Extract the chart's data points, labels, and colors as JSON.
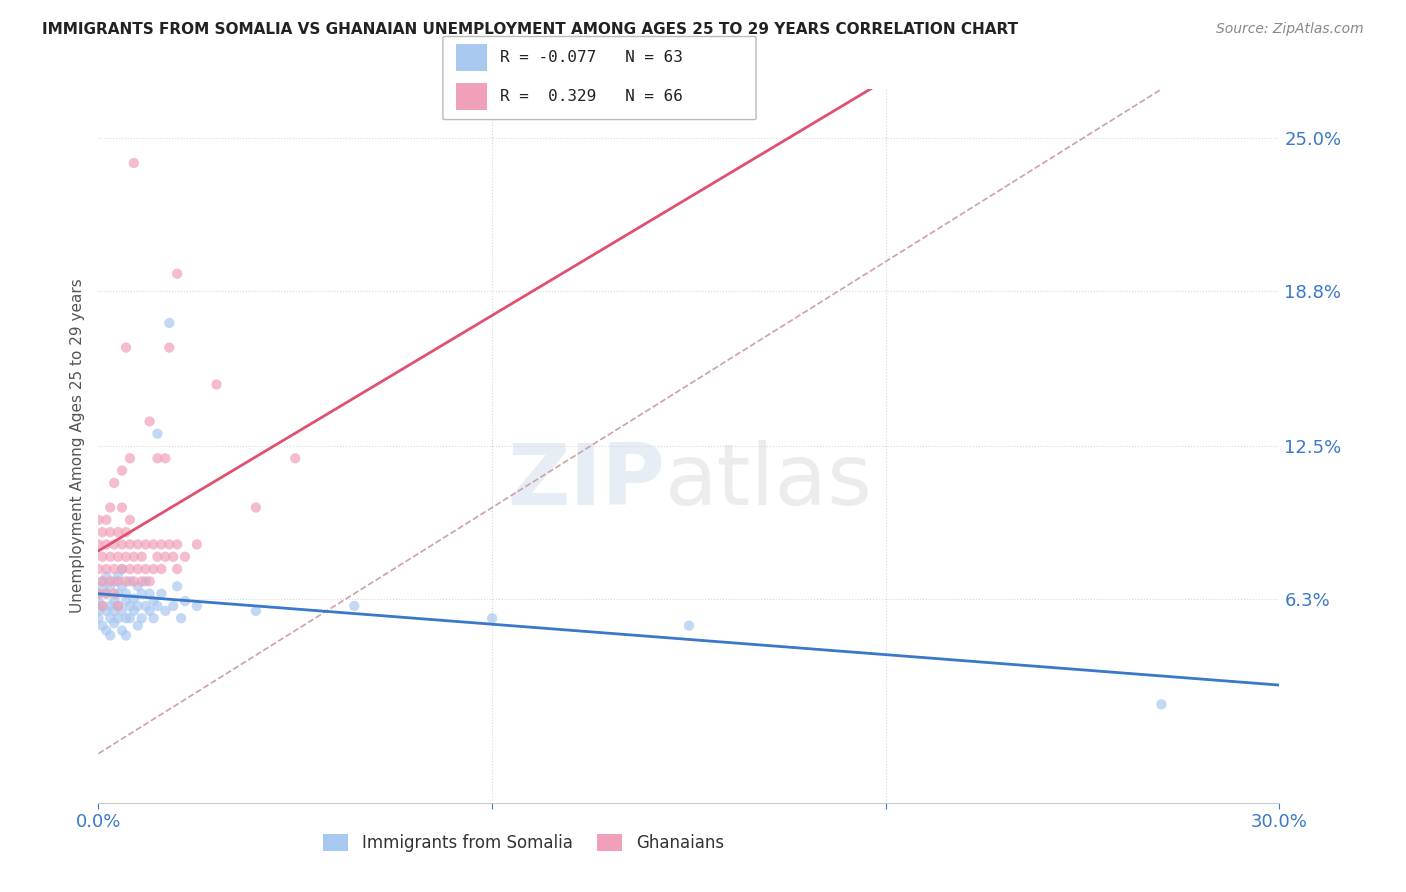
{
  "title": "IMMIGRANTS FROM SOMALIA VS GHANAIAN UNEMPLOYMENT AMONG AGES 25 TO 29 YEARS CORRELATION CHART",
  "source": "Source: ZipAtlas.com",
  "ylabel": "Unemployment Among Ages 25 to 29 years",
  "xlim": [
    0.0,
    0.3
  ],
  "ylim": [
    -0.02,
    0.27
  ],
  "yticks": [
    0.063,
    0.125,
    0.188,
    0.25
  ],
  "ytick_labels": [
    "6.3%",
    "12.5%",
    "18.8%",
    "25.0%"
  ],
  "r_somalia": -0.077,
  "n_somalia": 63,
  "r_ghanaian": 0.329,
  "n_ghanaian": 66,
  "color_somalia": "#a8c8f0",
  "color_ghanaian": "#f0a0b8",
  "trendline_somalia_color": "#3a78c9",
  "trendline_ghanaian_color": "#e05070",
  "trendline_diagonal_color": "#d0a0a8",
  "watermark_zip": "ZIP",
  "watermark_atlas": "atlas",
  "somalia_scatter": [
    [
      0.0,
      0.062
    ],
    [
      0.0,
      0.058
    ],
    [
      0.0,
      0.065
    ],
    [
      0.0,
      0.055
    ],
    [
      0.001,
      0.06
    ],
    [
      0.001,
      0.07
    ],
    [
      0.001,
      0.052
    ],
    [
      0.001,
      0.068
    ],
    [
      0.002,
      0.058
    ],
    [
      0.002,
      0.065
    ],
    [
      0.002,
      0.072
    ],
    [
      0.002,
      0.05
    ],
    [
      0.003,
      0.06
    ],
    [
      0.003,
      0.055
    ],
    [
      0.003,
      0.068
    ],
    [
      0.003,
      0.048
    ],
    [
      0.004,
      0.062
    ],
    [
      0.004,
      0.058
    ],
    [
      0.004,
      0.07
    ],
    [
      0.004,
      0.053
    ],
    [
      0.005,
      0.06
    ],
    [
      0.005,
      0.065
    ],
    [
      0.005,
      0.055
    ],
    [
      0.005,
      0.072
    ],
    [
      0.006,
      0.058
    ],
    [
      0.006,
      0.068
    ],
    [
      0.006,
      0.05
    ],
    [
      0.006,
      0.075
    ],
    [
      0.007,
      0.062
    ],
    [
      0.007,
      0.055
    ],
    [
      0.007,
      0.065
    ],
    [
      0.007,
      0.048
    ],
    [
      0.008,
      0.06
    ],
    [
      0.008,
      0.07
    ],
    [
      0.008,
      0.055
    ],
    [
      0.009,
      0.063
    ],
    [
      0.009,
      0.058
    ],
    [
      0.01,
      0.06
    ],
    [
      0.01,
      0.068
    ],
    [
      0.01,
      0.052
    ],
    [
      0.011,
      0.065
    ],
    [
      0.011,
      0.055
    ],
    [
      0.012,
      0.06
    ],
    [
      0.012,
      0.07
    ],
    [
      0.013,
      0.058
    ],
    [
      0.013,
      0.065
    ],
    [
      0.014,
      0.062
    ],
    [
      0.014,
      0.055
    ],
    [
      0.015,
      0.06
    ],
    [
      0.015,
      0.13
    ],
    [
      0.016,
      0.065
    ],
    [
      0.017,
      0.058
    ],
    [
      0.018,
      0.175
    ],
    [
      0.019,
      0.06
    ],
    [
      0.02,
      0.068
    ],
    [
      0.021,
      0.055
    ],
    [
      0.022,
      0.062
    ],
    [
      0.025,
      0.06
    ],
    [
      0.04,
      0.058
    ],
    [
      0.065,
      0.06
    ],
    [
      0.1,
      0.055
    ],
    [
      0.15,
      0.052
    ],
    [
      0.27,
      0.02
    ]
  ],
  "ghanaian_scatter": [
    [
      0.0,
      0.075
    ],
    [
      0.0,
      0.085
    ],
    [
      0.0,
      0.065
    ],
    [
      0.0,
      0.095
    ],
    [
      0.001,
      0.07
    ],
    [
      0.001,
      0.08
    ],
    [
      0.001,
      0.09
    ],
    [
      0.001,
      0.06
    ],
    [
      0.002,
      0.075
    ],
    [
      0.002,
      0.085
    ],
    [
      0.002,
      0.095
    ],
    [
      0.002,
      0.065
    ],
    [
      0.003,
      0.07
    ],
    [
      0.003,
      0.08
    ],
    [
      0.003,
      0.09
    ],
    [
      0.003,
      0.1
    ],
    [
      0.004,
      0.075
    ],
    [
      0.004,
      0.085
    ],
    [
      0.004,
      0.065
    ],
    [
      0.004,
      0.11
    ],
    [
      0.005,
      0.07
    ],
    [
      0.005,
      0.08
    ],
    [
      0.005,
      0.09
    ],
    [
      0.005,
      0.06
    ],
    [
      0.006,
      0.075
    ],
    [
      0.006,
      0.085
    ],
    [
      0.006,
      0.1
    ],
    [
      0.006,
      0.115
    ],
    [
      0.007,
      0.07
    ],
    [
      0.007,
      0.08
    ],
    [
      0.007,
      0.09
    ],
    [
      0.007,
      0.165
    ],
    [
      0.008,
      0.075
    ],
    [
      0.008,
      0.085
    ],
    [
      0.008,
      0.095
    ],
    [
      0.008,
      0.12
    ],
    [
      0.009,
      0.07
    ],
    [
      0.009,
      0.08
    ],
    [
      0.009,
      0.24
    ],
    [
      0.01,
      0.075
    ],
    [
      0.01,
      0.085
    ],
    [
      0.011,
      0.07
    ],
    [
      0.011,
      0.08
    ],
    [
      0.012,
      0.075
    ],
    [
      0.012,
      0.085
    ],
    [
      0.013,
      0.07
    ],
    [
      0.013,
      0.135
    ],
    [
      0.014,
      0.075
    ],
    [
      0.014,
      0.085
    ],
    [
      0.015,
      0.08
    ],
    [
      0.015,
      0.12
    ],
    [
      0.016,
      0.075
    ],
    [
      0.016,
      0.085
    ],
    [
      0.017,
      0.08
    ],
    [
      0.017,
      0.12
    ],
    [
      0.018,
      0.085
    ],
    [
      0.018,
      0.165
    ],
    [
      0.019,
      0.08
    ],
    [
      0.02,
      0.075
    ],
    [
      0.02,
      0.085
    ],
    [
      0.02,
      0.195
    ],
    [
      0.022,
      0.08
    ],
    [
      0.025,
      0.085
    ],
    [
      0.03,
      0.15
    ],
    [
      0.04,
      0.1
    ],
    [
      0.05,
      0.12
    ]
  ]
}
